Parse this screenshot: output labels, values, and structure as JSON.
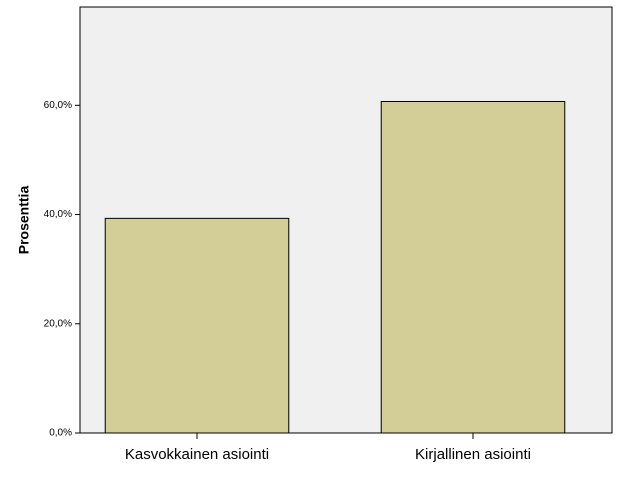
{
  "chart_data": {
    "type": "bar",
    "y_label": "Prosenttia",
    "categories": [
      "Kasvokkainen asiointi",
      "Kirjallinen asiointi"
    ],
    "values": [
      39.3,
      60.7
    ],
    "color": "#d3ce97",
    "ylim": [
      0,
      78
    ],
    "yticks": [
      {
        "value": 0,
        "label": "0,0%"
      },
      {
        "value": 20,
        "label": "20,0%"
      },
      {
        "value": 40,
        "label": "40,0%"
      },
      {
        "value": 60,
        "label": "60,0%"
      }
    ]
  }
}
